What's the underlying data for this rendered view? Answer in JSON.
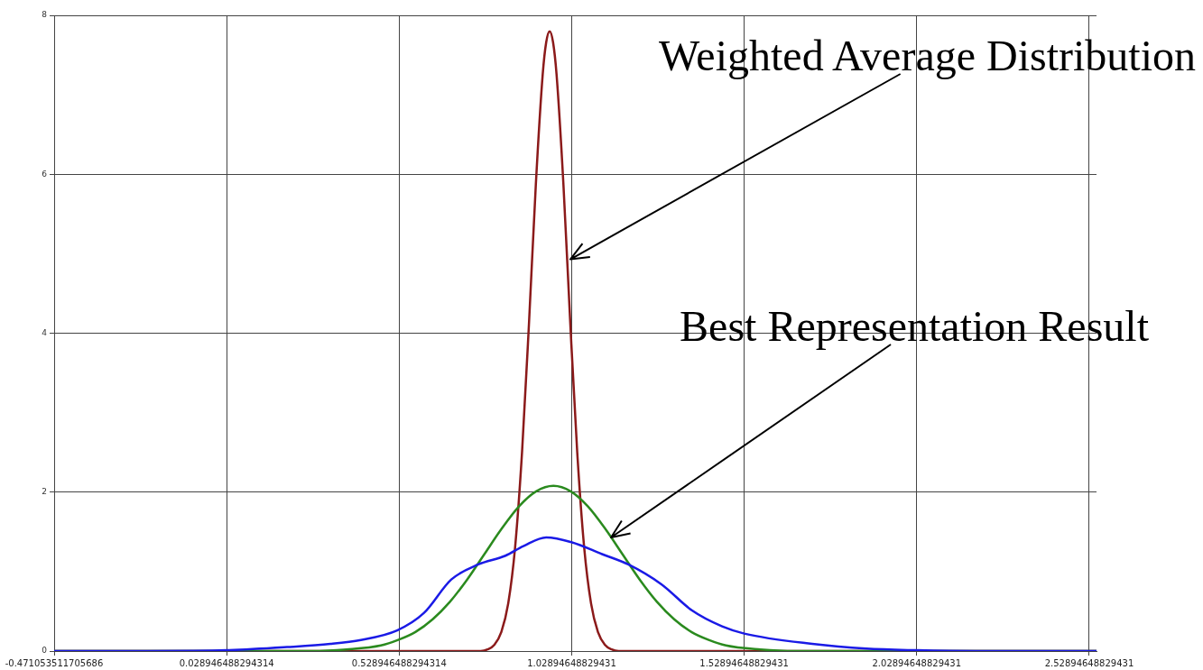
{
  "chart_data": {
    "type": "line",
    "xlim": [
      -0.471053511705686,
      2.55
    ],
    "ylim": [
      0,
      8
    ],
    "xticks": [
      -0.471053511705686,
      0.028946488294314,
      0.528946488294314,
      1.02894648829431,
      1.52894648829431,
      2.02894648829431,
      2.52894648829431
    ],
    "yticks": [
      0,
      2,
      4,
      6,
      8
    ],
    "grid": true,
    "legend": false,
    "marker": "none",
    "line_style": "solid",
    "series": [
      {
        "color": "#1a1ae6",
        "x": [
          -0.471,
          -0.2,
          0.029,
          0.204,
          0.33,
          0.418,
          0.523,
          0.601,
          0.68,
          0.758,
          0.837,
          0.889,
          0.955,
          1.028,
          1.117,
          1.193,
          1.289,
          1.378,
          1.465,
          1.529,
          1.726,
          1.883,
          2.029,
          2.2,
          2.55
        ],
        "values": [
          0,
          0,
          0.01,
          0.05,
          0.09,
          0.14,
          0.26,
          0.48,
          0.9,
          1.09,
          1.2,
          1.32,
          1.43,
          1.37,
          1.22,
          1.09,
          0.84,
          0.51,
          0.31,
          0.22,
          0.09,
          0.03,
          0.01,
          0,
          0
        ]
      },
      {
        "color": "#2a8a1e",
        "x": [
          -0.471,
          0.176,
          0.276,
          0.376,
          0.476,
          0.526,
          0.576,
          0.626,
          0.676,
          0.726,
          0.776,
          0.826,
          0.876,
          0.926,
          0.976,
          1.026,
          1.076,
          1.126,
          1.176,
          1.226,
          1.276,
          1.326,
          1.376,
          1.426,
          1.476,
          1.576,
          1.676,
          1.776,
          2.55
        ],
        "values": [
          0,
          0,
          0,
          0.02,
          0.07,
          0.14,
          0.24,
          0.4,
          0.62,
          0.9,
          1.22,
          1.54,
          1.82,
          2.01,
          2.08,
          2.01,
          1.82,
          1.54,
          1.22,
          0.9,
          0.62,
          0.4,
          0.24,
          0.14,
          0.07,
          0.02,
          0,
          0,
          0
        ]
      },
      {
        "color": "#8b1a1a",
        "x": [
          -0.471,
          0.765,
          0.785,
          0.805,
          0.825,
          0.845,
          0.865,
          0.885,
          0.905,
          0.925,
          0.945,
          0.955,
          0.965,
          0.975,
          0.985,
          1.005,
          1.025,
          1.045,
          1.065,
          1.085,
          1.105,
          1.125,
          1.145,
          1.165,
          2.55
        ],
        "values": [
          0,
          0,
          0.02,
          0.08,
          0.24,
          0.6,
          1.31,
          2.5,
          4.11,
          5.87,
          7.26,
          7.66,
          7.8,
          7.66,
          7.26,
          5.87,
          4.11,
          2.5,
          1.31,
          0.6,
          0.24,
          0.08,
          0.02,
          0,
          0
        ]
      }
    ],
    "annotations": [
      {
        "text": "Weighted Average Distribution",
        "x": 1.025,
        "y": 4.93
      },
      {
        "text": "Best Representation Result",
        "x": 1.143,
        "y": 1.43
      }
    ]
  }
}
